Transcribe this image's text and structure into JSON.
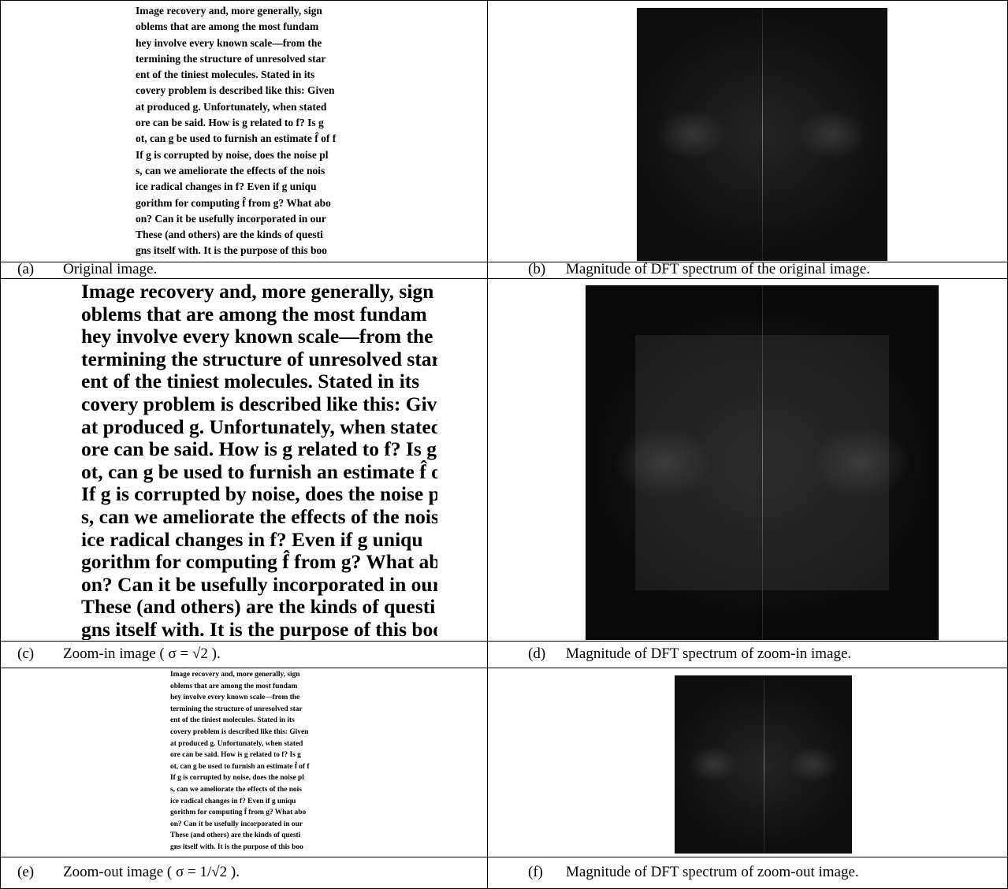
{
  "passage": {
    "lines": [
      "Image recovery and, more generally, sign",
      "oblems that are among the most fundam",
      "hey involve every known scale—from the",
      "termining the structure of unresolved star",
      "ent of the tiniest molecules. Stated in its",
      "covery problem is described like this: Given",
      "at produced g. Unfortunately, when stated",
      "ore can be said. How is g related to f? Is g",
      "ot, can g be used to furnish an estimate f̂ of f",
      "If g is corrupted by noise, does the noise pl",
      "s, can we ameliorate the effects of the nois",
      "ice radical changes in f? Even if g uniqu",
      "gorithm for computing f̂ from g? What abo",
      "on? Can it be usefully incorporated in our",
      "These (and others) are the kinds of questi",
      "gns itself with. It is the purpose of this boo"
    ]
  },
  "panels": [
    {
      "label": "(a)",
      "caption": "Original image."
    },
    {
      "label": "(b)",
      "caption": "Magnitude of DFT spectrum of the original image."
    },
    {
      "label": "(c)",
      "caption": "Zoom-in image ( σ = √2 )."
    },
    {
      "label": "(d)",
      "caption": "Magnitude of DFT spectrum of zoom-in image."
    },
    {
      "label": "(e)",
      "caption": "Zoom-out image ( σ = 1/√2 )."
    },
    {
      "label": "(f)",
      "caption": "Magnitude of DFT spectrum of zoom-out image."
    }
  ]
}
